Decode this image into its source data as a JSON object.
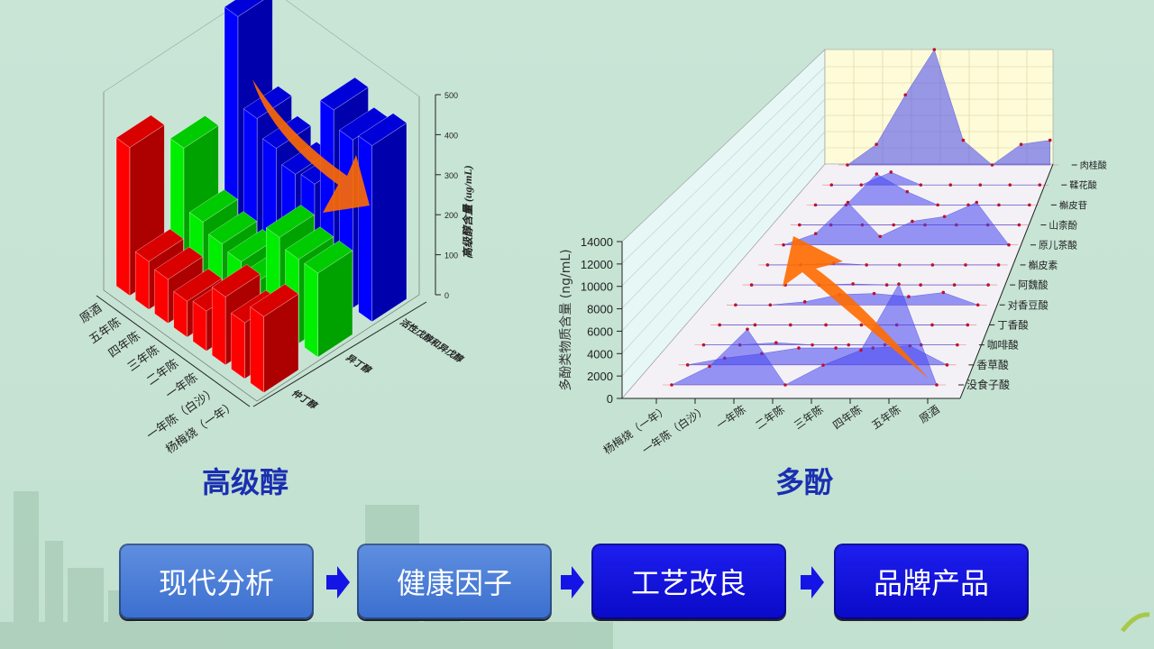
{
  "captions": {
    "left": "高级醇",
    "right": "多酚"
  },
  "flow": [
    "现代分析",
    "健康因子",
    "工艺改良",
    "品牌产品"
  ],
  "colors": {
    "background": "#c9e5d6",
    "caption": "#1a2fb0",
    "flow_light": "#4a7fd6",
    "flow_dark": "#1414e6",
    "arrow_orange": "#ff6a00"
  },
  "chart_data": [
    {
      "type": "bar3d",
      "zlabel": "高级醇含量 (ug/mL)",
      "zlim": [
        0,
        500
      ],
      "zticks": [
        "0",
        "100",
        "200",
        "300",
        "400",
        "500"
      ],
      "categories": [
        "原酒",
        "五年陈",
        "四年陈",
        "三年陈",
        "二年陈",
        "一年陈",
        "一年陈（白沙）",
        "杨梅烧（一年）"
      ],
      "series": [
        {
          "name": "仲丁醇",
          "color": "#ff0000",
          "values": [
            370,
            120,
            110,
            90,
            100,
            170,
            140,
            190
          ]
        },
        {
          "name": "异丁醇",
          "color": "#00ee00",
          "values": [
            280,
            130,
            110,
            100,
            90,
            230,
            210,
            210
          ]
        },
        {
          "name": "活性戊醇和异戊醇",
          "color": "#0000ff",
          "values": [
            520,
            300,
            260,
            230,
            240,
            460,
            420,
            440
          ]
        }
      ]
    },
    {
      "type": "area3d",
      "ylabel": "多酚类物质含量 (ng/mL)",
      "zlim": [
        0,
        14000
      ],
      "zticks": [
        "0",
        "2000",
        "4000",
        "6000",
        "8000",
        "10000",
        "12000",
        "14000"
      ],
      "categories": [
        "杨梅烧（一年）",
        "一年陈（白沙）",
        "一年陈",
        "二年陈",
        "三年陈",
        "四年陈",
        "五年陈",
        "原酒"
      ],
      "series": [
        {
          "name": "没食子酸",
          "values": [
            0,
            1600,
            4800,
            0,
            1700,
            3000,
            8700,
            0
          ]
        },
        {
          "name": "香草酸",
          "values": [
            0,
            600,
            1000,
            1500,
            1500,
            1500,
            1700,
            0
          ]
        },
        {
          "name": "咖啡酸",
          "values": [
            0,
            0,
            200,
            0,
            0,
            0,
            0,
            0
          ]
        },
        {
          "name": "丁香酸",
          "values": [
            0,
            0,
            0,
            0,
            0,
            0,
            0,
            0
          ]
        },
        {
          "name": "对香豆酸",
          "values": [
            0,
            0,
            300,
            1000,
            1100,
            800,
            1200,
            0
          ]
        },
        {
          "name": "阿魏酸",
          "values": [
            0,
            0,
            0,
            100,
            0,
            0,
            0,
            0
          ]
        },
        {
          "name": "槲皮素",
          "values": [
            0,
            0,
            200,
            0,
            0,
            0,
            0,
            0
          ]
        },
        {
          "name": "原儿茶酸",
          "values": [
            0,
            1200,
            4500,
            900,
            2500,
            3000,
            4500,
            0
          ]
        },
        {
          "name": "山柰酚",
          "values": [
            0,
            0,
            0,
            0,
            0,
            0,
            0,
            0
          ]
        },
        {
          "name": "槲皮苷",
          "values": [
            0,
            0,
            3500,
            1500,
            0,
            0,
            0,
            0
          ]
        },
        {
          "name": "鞣花酸",
          "values": [
            0,
            0,
            1500,
            0,
            0,
            0,
            0,
            0
          ]
        },
        {
          "name": "肉桂酸",
          "values": [
            0,
            2500,
            8500,
            14000,
            3000,
            0,
            2500,
            3000
          ]
        }
      ]
    }
  ]
}
